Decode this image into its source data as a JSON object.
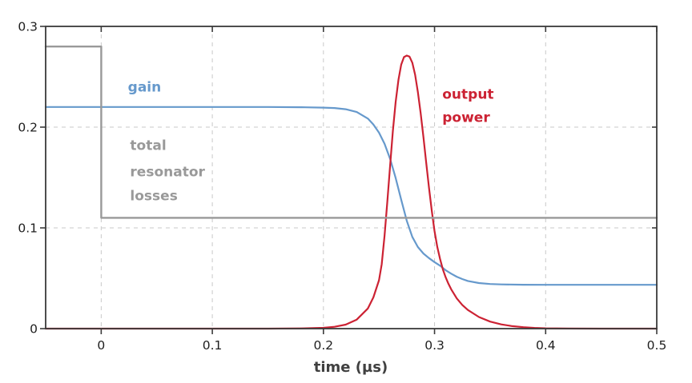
{
  "figure": {
    "background": "#ffffff",
    "frame_color": "#3a3a3a",
    "grid_color": "#c9c9c9",
    "tick_label_color": "#1f1f1f",
    "axis_title_color": "#404040"
  },
  "chart_data": {
    "type": "line",
    "title": "",
    "xlabel": "time (µs)",
    "ylabel": "",
    "xlim": [
      -0.05,
      0.5
    ],
    "ylim": [
      0,
      0.3
    ],
    "xticks": [
      0,
      0.1,
      0.2,
      0.3,
      0.4,
      0.5
    ],
    "xtick_labels": [
      "0",
      "0.1",
      "0.2",
      "0.3",
      "0.4",
      "0.5"
    ],
    "yticks": [
      0,
      0.1,
      0.2,
      0.3
    ],
    "ytick_labels": [
      "0",
      "0.1",
      "0.2",
      "0.3"
    ],
    "grid": true,
    "legend_position": "inline-annotations",
    "series": [
      {
        "name": "gain",
        "color": "#6699cc",
        "width": 2.2,
        "points": [
          [
            -0.05,
            0.22
          ],
          [
            0.0,
            0.22
          ],
          [
            0.05,
            0.22
          ],
          [
            0.1,
            0.22
          ],
          [
            0.15,
            0.22
          ],
          [
            0.18,
            0.2198
          ],
          [
            0.2,
            0.2194
          ],
          [
            0.21,
            0.219
          ],
          [
            0.22,
            0.2178
          ],
          [
            0.23,
            0.215
          ],
          [
            0.24,
            0.2085
          ],
          [
            0.245,
            0.2025
          ],
          [
            0.25,
            0.1945
          ],
          [
            0.255,
            0.1835
          ],
          [
            0.26,
            0.1685
          ],
          [
            0.265,
            0.1495
          ],
          [
            0.27,
            0.128
          ],
          [
            0.275,
            0.107
          ],
          [
            0.28,
            0.091
          ],
          [
            0.285,
            0.081
          ],
          [
            0.29,
            0.0745
          ],
          [
            0.295,
            0.07
          ],
          [
            0.3,
            0.066
          ],
          [
            0.305,
            0.0625
          ],
          [
            0.31,
            0.058
          ],
          [
            0.315,
            0.0545
          ],
          [
            0.32,
            0.0515
          ],
          [
            0.325,
            0.0492
          ],
          [
            0.33,
            0.0473
          ],
          [
            0.34,
            0.0452
          ],
          [
            0.35,
            0.0443
          ],
          [
            0.36,
            0.0439
          ],
          [
            0.38,
            0.0436
          ],
          [
            0.4,
            0.0435
          ],
          [
            0.45,
            0.0435
          ],
          [
            0.5,
            0.0435
          ]
        ]
      },
      {
        "name": "output power",
        "color": "#cc2233",
        "width": 2.2,
        "points": [
          [
            -0.05,
            0.0
          ],
          [
            0.1,
            0.0
          ],
          [
            0.15,
            0.0
          ],
          [
            0.18,
            0.0002
          ],
          [
            0.2,
            0.0008
          ],
          [
            0.21,
            0.0018
          ],
          [
            0.22,
            0.004
          ],
          [
            0.23,
            0.009
          ],
          [
            0.24,
            0.02
          ],
          [
            0.245,
            0.031
          ],
          [
            0.25,
            0.048
          ],
          [
            0.2525,
            0.064
          ],
          [
            0.255,
            0.092
          ],
          [
            0.2575,
            0.126
          ],
          [
            0.26,
            0.162
          ],
          [
            0.2625,
            0.196
          ],
          [
            0.265,
            0.225
          ],
          [
            0.2675,
            0.247
          ],
          [
            0.27,
            0.262
          ],
          [
            0.2725,
            0.2695
          ],
          [
            0.275,
            0.271
          ],
          [
            0.2775,
            0.27
          ],
          [
            0.28,
            0.264
          ],
          [
            0.2825,
            0.252
          ],
          [
            0.285,
            0.235
          ],
          [
            0.2875,
            0.214
          ],
          [
            0.29,
            0.19
          ],
          [
            0.2925,
            0.165
          ],
          [
            0.295,
            0.14
          ],
          [
            0.2975,
            0.117
          ],
          [
            0.3,
            0.097
          ],
          [
            0.3025,
            0.081
          ],
          [
            0.305,
            0.069
          ],
          [
            0.3075,
            0.059
          ],
          [
            0.31,
            0.051
          ],
          [
            0.3125,
            0.0445
          ],
          [
            0.315,
            0.039
          ],
          [
            0.32,
            0.03
          ],
          [
            0.325,
            0.0235
          ],
          [
            0.33,
            0.0185
          ],
          [
            0.34,
            0.0115
          ],
          [
            0.35,
            0.007
          ],
          [
            0.36,
            0.0042
          ],
          [
            0.37,
            0.0025
          ],
          [
            0.38,
            0.0014
          ],
          [
            0.39,
            0.0007
          ],
          [
            0.4,
            0.0003
          ],
          [
            0.42,
            0.0001
          ],
          [
            0.45,
            0.0
          ],
          [
            0.5,
            0.0
          ]
        ]
      },
      {
        "name": "total resonator losses",
        "color": "#999999",
        "width": 2.4,
        "points": [
          [
            -0.05,
            0.28
          ],
          [
            0.0,
            0.28
          ],
          [
            0.0,
            0.11
          ],
          [
            0.5,
            0.11
          ]
        ]
      }
    ],
    "annotations": [
      {
        "text": "gain",
        "color": "#6699cc",
        "t": 0.024,
        "v": 0.24
      },
      {
        "text": "total",
        "color": "#999999",
        "t": 0.026,
        "v": 0.182
      },
      {
        "text": "resonator",
        "color": "#999999",
        "t": 0.026,
        "v": 0.156
      },
      {
        "text": "losses",
        "color": "#999999",
        "t": 0.026,
        "v": 0.132
      },
      {
        "text": "output",
        "color": "#cc2233",
        "t": 0.307,
        "v": 0.233
      },
      {
        "text": "power",
        "color": "#cc2233",
        "t": 0.307,
        "v": 0.21
      }
    ],
    "key_values": {
      "initial_gain": 0.22,
      "final_gain": 0.044,
      "losses_before_switch": 0.28,
      "losses_after_switch": 0.11,
      "peak_output_power": 0.271,
      "pulse_peak_time_us": 0.276
    }
  }
}
